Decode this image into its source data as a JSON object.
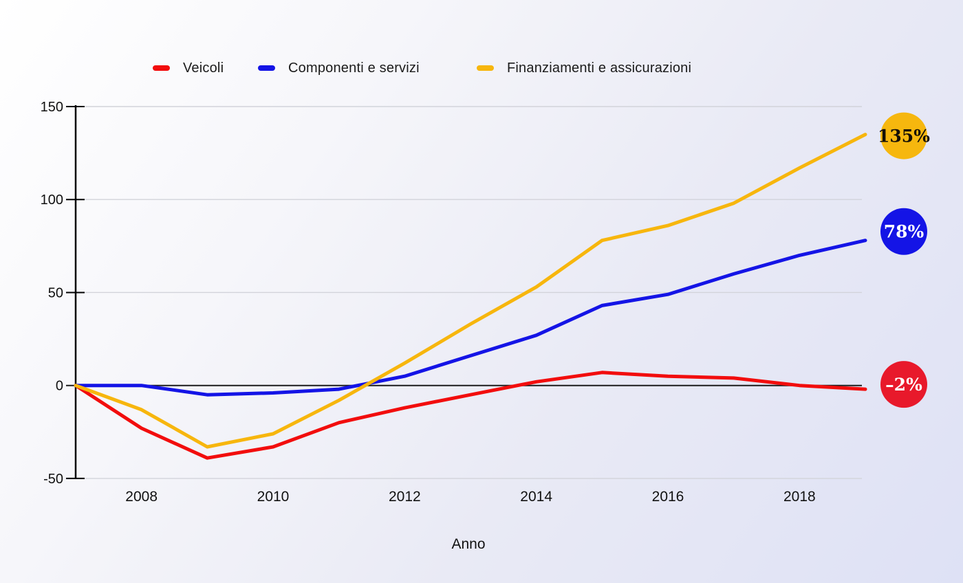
{
  "xlabel": "Anno",
  "axis": {
    "y_tick_labels": [
      "150",
      "100",
      "50",
      "0",
      "-50"
    ],
    "x_tick_labels": [
      "2008",
      "2010",
      "2012",
      "2014",
      "2016",
      "2018"
    ]
  },
  "chart_data": {
    "type": "line",
    "title": "",
    "xlabel": "Anno",
    "ylabel": "",
    "x": [
      2007,
      2008,
      2009,
      2010,
      2011,
      2012,
      2013,
      2014,
      2015,
      2016,
      2017,
      2018,
      2019
    ],
    "x_tick_labels": [
      "2008",
      "2010",
      "2012",
      "2014",
      "2016",
      "2018"
    ],
    "y_ticks": [
      150,
      100,
      50,
      0,
      -50
    ],
    "ylim": [
      -50,
      150
    ],
    "grid": true,
    "legend_position": "top",
    "series": [
      {
        "name": "Veicoli",
        "color": "#F20D0D",
        "values": [
          0,
          -23,
          -39,
          -33,
          -20,
          -12,
          -5,
          2,
          7,
          5,
          4,
          0,
          -2
        ],
        "end_label": "–2%",
        "end_label_bg": "#E8192B",
        "end_label_text_color": "#FFFFFF"
      },
      {
        "name": "Componenti e servizi",
        "color": "#1414E6",
        "values": [
          0,
          0,
          -5,
          -4,
          -2,
          5,
          16,
          27,
          43,
          49,
          60,
          70,
          78
        ],
        "end_label": "78%",
        "end_label_bg": "#1414E6",
        "end_label_text_color": "#FFFFFF"
      },
      {
        "name": "Finanziamenti e assicurazioni",
        "color": "#F7B60D",
        "values": [
          0,
          -13,
          -33,
          -26,
          -8,
          12,
          33,
          53,
          78,
          86,
          98,
          117,
          135
        ],
        "end_label": "135%",
        "end_label_bg": "#F6B70E",
        "end_label_text_color": "#151006"
      }
    ]
  }
}
